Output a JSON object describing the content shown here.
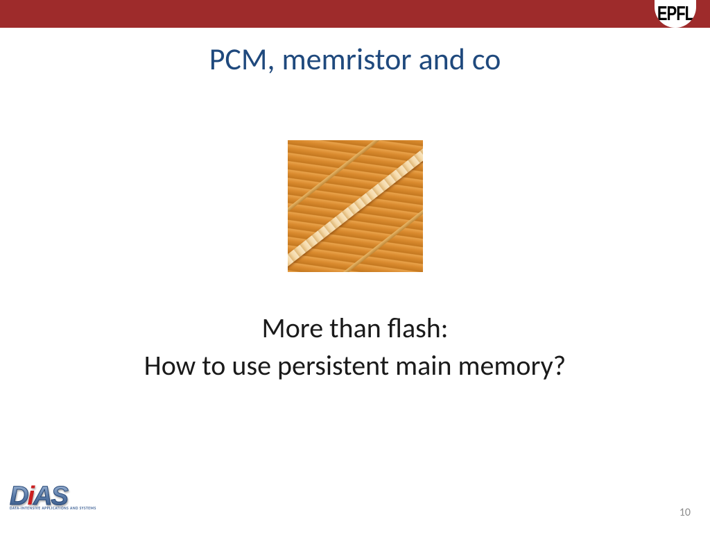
{
  "colors": {
    "top_bar": "#9e2b2b",
    "title": "#1f497d",
    "body_text": "#1a1a1a",
    "page_number": "#8c8c8c"
  },
  "header": {
    "institution_badge": "EPFL"
  },
  "slide": {
    "title": "PCM, memristor and co",
    "body_line1": "More than flash:",
    "body_line2": "How to use persistent main memory?",
    "image_alt": "memristor-microscopy-image"
  },
  "footer": {
    "logo_text": "DiAS",
    "logo_subtitle": "DATA-INTENSIVE APPLICATIONS AND SYSTEMS",
    "page_number": "10"
  }
}
